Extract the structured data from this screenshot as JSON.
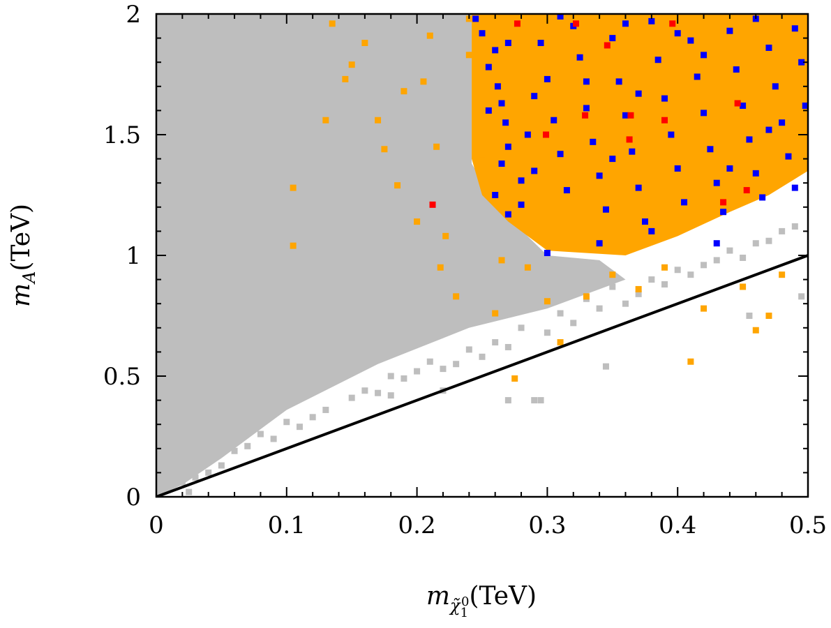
{
  "chart_data": {
    "type": "scatter",
    "title": "",
    "xlabel": "m_χ̃₁⁰(TeV)",
    "ylabel": "m_A(TeV)",
    "xlabel_parts": {
      "symbol": "m",
      "subscript": "χ̃",
      "sub_index": "1",
      "sup_index": "0",
      "unit": "(TeV)"
    },
    "ylabel_parts": {
      "symbol": "m",
      "subscript": "A",
      "unit": "(TeV)"
    },
    "xlim": [
      0,
      0.5
    ],
    "ylim": [
      0,
      2
    ],
    "xticks": [
      {
        "value": 0,
        "label": "0"
      },
      {
        "value": 0.1,
        "label": "0.1"
      },
      {
        "value": 0.2,
        "label": "0.2"
      },
      {
        "value": 0.3,
        "label": "0.3"
      },
      {
        "value": 0.4,
        "label": "0.4"
      },
      {
        "value": 0.5,
        "label": "0.5"
      }
    ],
    "yticks": [
      {
        "value": 0,
        "label": "0"
      },
      {
        "value": 0.5,
        "label": "0.5"
      },
      {
        "value": 1,
        "label": "1"
      },
      {
        "value": 1.5,
        "label": "1.5"
      },
      {
        "value": 2,
        "label": "2"
      }
    ],
    "grid": false,
    "legend": "none",
    "colors": {
      "gray": "#bebebe",
      "orange": "#ffa500",
      "blue": "#0000ff",
      "red": "#ff0000",
      "line": "#000000"
    },
    "regions": [
      {
        "name": "gray-dense-region",
        "color": "#bebebe",
        "polygon": [
          [
            0,
            0
          ],
          [
            0,
            2
          ],
          [
            0.242,
            2
          ],
          [
            0.242,
            1.38
          ],
          [
            0.262,
            1.2
          ],
          [
            0.3,
            1.0
          ],
          [
            0.34,
            0.98
          ],
          [
            0.36,
            0.9
          ],
          [
            0.3,
            0.78
          ],
          [
            0.24,
            0.7
          ],
          [
            0.17,
            0.55
          ],
          [
            0.1,
            0.36
          ],
          [
            0.05,
            0.16
          ],
          [
            0.02,
            0.05
          ]
        ]
      },
      {
        "name": "orange-dense-region",
        "color": "#ffa500",
        "polygon": [
          [
            0.242,
            2
          ],
          [
            0.5,
            2
          ],
          [
            0.5,
            1.35
          ],
          [
            0.47,
            1.25
          ],
          [
            0.44,
            1.18
          ],
          [
            0.4,
            1.08
          ],
          [
            0.36,
            1.0
          ],
          [
            0.3,
            1.02
          ],
          [
            0.27,
            1.14
          ],
          [
            0.25,
            1.25
          ],
          [
            0.242,
            1.4
          ]
        ]
      }
    ],
    "reference_line": {
      "name": "diagonal-line",
      "x": [
        0,
        0.5
      ],
      "y": [
        0,
        1.0
      ],
      "color": "#000000"
    },
    "series": [
      {
        "name": "gray-scatter",
        "color": "#bebebe",
        "points": [
          [
            0.01,
            0.04
          ],
          [
            0.02,
            0.06
          ],
          [
            0.025,
            0.02
          ],
          [
            0.03,
            0.08
          ],
          [
            0.04,
            0.1
          ],
          [
            0.05,
            0.13
          ],
          [
            0.06,
            0.19
          ],
          [
            0.07,
            0.21
          ],
          [
            0.08,
            0.26
          ],
          [
            0.09,
            0.24
          ],
          [
            0.1,
            0.31
          ],
          [
            0.11,
            0.29
          ],
          [
            0.12,
            0.33
          ],
          [
            0.13,
            0.36
          ],
          [
            0.15,
            0.41
          ],
          [
            0.16,
            0.44
          ],
          [
            0.17,
            0.43
          ],
          [
            0.18,
            0.5
          ],
          [
            0.19,
            0.49
          ],
          [
            0.2,
            0.52
          ],
          [
            0.21,
            0.56
          ],
          [
            0.22,
            0.53
          ],
          [
            0.23,
            0.55
          ],
          [
            0.24,
            0.61
          ],
          [
            0.25,
            0.58
          ],
          [
            0.26,
            0.64
          ],
          [
            0.27,
            0.62
          ],
          [
            0.28,
            0.7
          ],
          [
            0.29,
            0.4
          ],
          [
            0.295,
            0.4
          ],
          [
            0.3,
            0.68
          ],
          [
            0.31,
            0.76
          ],
          [
            0.32,
            0.72
          ],
          [
            0.33,
            0.82
          ],
          [
            0.34,
            0.78
          ],
          [
            0.345,
            0.54
          ],
          [
            0.35,
            0.87
          ],
          [
            0.36,
            0.8
          ],
          [
            0.37,
            0.84
          ],
          [
            0.38,
            0.9
          ],
          [
            0.39,
            0.88
          ],
          [
            0.4,
            0.94
          ],
          [
            0.41,
            0.92
          ],
          [
            0.42,
            0.96
          ],
          [
            0.43,
            0.98
          ],
          [
            0.44,
            1.02
          ],
          [
            0.45,
            0.99
          ],
          [
            0.46,
            1.05
          ],
          [
            0.47,
            1.06
          ],
          [
            0.48,
            1.1
          ],
          [
            0.49,
            1.12
          ],
          [
            0.495,
            0.83
          ],
          [
            0.455,
            0.75
          ],
          [
            0.27,
            0.4
          ],
          [
            0.22,
            0.44
          ],
          [
            0.18,
            0.42
          ]
        ]
      },
      {
        "name": "orange-scatter",
        "color": "#ffa500",
        "points": [
          [
            0.105,
            1.04
          ],
          [
            0.105,
            1.28
          ],
          [
            0.13,
            1.56
          ],
          [
            0.135,
            1.96
          ],
          [
            0.145,
            1.73
          ],
          [
            0.15,
            1.79
          ],
          [
            0.16,
            1.88
          ],
          [
            0.17,
            1.56
          ],
          [
            0.175,
            1.44
          ],
          [
            0.185,
            1.29
          ],
          [
            0.19,
            1.68
          ],
          [
            0.2,
            1.14
          ],
          [
            0.205,
            1.72
          ],
          [
            0.21,
            1.91
          ],
          [
            0.215,
            1.45
          ],
          [
            0.218,
            0.95
          ],
          [
            0.222,
            1.08
          ],
          [
            0.23,
            0.83
          ],
          [
            0.24,
            1.83
          ],
          [
            0.25,
            1.42
          ],
          [
            0.26,
            0.76
          ],
          [
            0.265,
            0.98
          ],
          [
            0.275,
            0.49
          ],
          [
            0.285,
            0.95
          ],
          [
            0.3,
            0.81
          ],
          [
            0.31,
            0.64
          ],
          [
            0.33,
            0.83
          ],
          [
            0.35,
            0.92
          ],
          [
            0.37,
            0.86
          ],
          [
            0.39,
            0.95
          ],
          [
            0.41,
            0.56
          ],
          [
            0.42,
            0.78
          ],
          [
            0.45,
            0.87
          ],
          [
            0.46,
            0.69
          ],
          [
            0.47,
            0.75
          ],
          [
            0.48,
            0.92
          ],
          [
            0.28,
            1.96
          ],
          [
            0.24,
            1.98
          ]
        ]
      },
      {
        "name": "blue-scatter",
        "color": "#0000ff",
        "points": [
          [
            0.245,
            1.98
          ],
          [
            0.25,
            1.92
          ],
          [
            0.255,
            1.78
          ],
          [
            0.26,
            1.85
          ],
          [
            0.262,
            1.7
          ],
          [
            0.265,
            1.63
          ],
          [
            0.268,
            1.55
          ],
          [
            0.27,
            1.45
          ],
          [
            0.265,
            1.38
          ],
          [
            0.26,
            1.25
          ],
          [
            0.27,
            1.17
          ],
          [
            0.28,
            1.31
          ],
          [
            0.285,
            1.5
          ],
          [
            0.29,
            1.66
          ],
          [
            0.295,
            1.88
          ],
          [
            0.3,
            1.73
          ],
          [
            0.305,
            1.56
          ],
          [
            0.31,
            1.42
          ],
          [
            0.315,
            1.27
          ],
          [
            0.32,
            1.95
          ],
          [
            0.325,
            1.82
          ],
          [
            0.33,
            1.61
          ],
          [
            0.335,
            1.47
          ],
          [
            0.34,
            1.33
          ],
          [
            0.345,
            1.19
          ],
          [
            0.35,
            1.9
          ],
          [
            0.355,
            1.72
          ],
          [
            0.36,
            1.58
          ],
          [
            0.365,
            1.43
          ],
          [
            0.37,
            1.28
          ],
          [
            0.375,
            1.14
          ],
          [
            0.38,
            1.97
          ],
          [
            0.385,
            1.81
          ],
          [
            0.39,
            1.65
          ],
          [
            0.395,
            1.5
          ],
          [
            0.4,
            1.36
          ],
          [
            0.405,
            1.22
          ],
          [
            0.41,
            1.89
          ],
          [
            0.415,
            1.74
          ],
          [
            0.42,
            1.59
          ],
          [
            0.425,
            1.44
          ],
          [
            0.43,
            1.3
          ],
          [
            0.435,
            1.18
          ],
          [
            0.44,
            1.93
          ],
          [
            0.445,
            1.77
          ],
          [
            0.45,
            1.62
          ],
          [
            0.455,
            1.48
          ],
          [
            0.46,
            1.34
          ],
          [
            0.465,
            1.24
          ],
          [
            0.47,
            1.86
          ],
          [
            0.475,
            1.7
          ],
          [
            0.48,
            1.55
          ],
          [
            0.485,
            1.41
          ],
          [
            0.49,
            1.28
          ],
          [
            0.495,
            1.8
          ],
          [
            0.498,
            1.62
          ],
          [
            0.3,
            1.01
          ],
          [
            0.43,
            1.05
          ],
          [
            0.38,
            1.1
          ],
          [
            0.34,
            1.05
          ],
          [
            0.27,
            1.88
          ],
          [
            0.31,
            1.99
          ],
          [
            0.36,
            1.96
          ],
          [
            0.4,
            1.92
          ],
          [
            0.46,
            1.98
          ],
          [
            0.49,
            1.94
          ],
          [
            0.255,
            1.6
          ],
          [
            0.28,
            1.21
          ],
          [
            0.33,
            1.72
          ],
          [
            0.37,
            1.67
          ],
          [
            0.42,
            1.83
          ],
          [
            0.47,
            1.52
          ],
          [
            0.44,
            1.36
          ],
          [
            0.35,
            1.4
          ],
          [
            0.29,
            1.35
          ]
        ]
      },
      {
        "name": "red-scatter",
        "color": "#ff0000",
        "points": [
          [
            0.212,
            1.21
          ],
          [
            0.277,
            1.96
          ],
          [
            0.299,
            1.5
          ],
          [
            0.322,
            1.96
          ],
          [
            0.329,
            1.58
          ],
          [
            0.346,
            1.87
          ],
          [
            0.363,
            1.48
          ],
          [
            0.364,
            1.58
          ],
          [
            0.39,
            1.56
          ],
          [
            0.396,
            1.96
          ],
          [
            0.435,
            1.22
          ],
          [
            0.446,
            1.63
          ],
          [
            0.453,
            1.27
          ]
        ]
      }
    ]
  }
}
